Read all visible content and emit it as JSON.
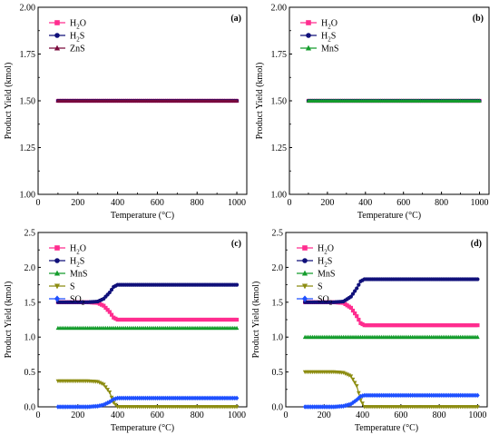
{
  "chart_data": [
    {
      "type": "line",
      "panel_label": "(a)",
      "xlabel": "Temperature (°C)",
      "ylabel": "Product Yield (kmol)",
      "xlim": [
        0,
        1050
      ],
      "ylim": [
        1.0,
        2.0
      ],
      "xticks": [
        0,
        200,
        400,
        600,
        800,
        1000
      ],
      "yticks": [
        1.0,
        1.25,
        1.5,
        1.75,
        2.0
      ],
      "ytick_labels": [
        "1.00",
        "1.25",
        "1.50",
        "1.75",
        "2.00"
      ],
      "legend_position": "top-left",
      "series": [
        {
          "name": "H",
          "sub": "2",
          "tail": "O",
          "color": "#ff2d8f",
          "marker": "square",
          "x": [
            100,
            1000
          ],
          "y": [
            1.5,
            1.5
          ]
        },
        {
          "name": "H",
          "sub": "2",
          "tail": "S",
          "color": "#10107a",
          "marker": "circle",
          "x": [
            100,
            1000
          ],
          "y": [
            1.5,
            1.5
          ]
        },
        {
          "name": "ZnS",
          "sub": "",
          "tail": "",
          "color": "#7a0a3c",
          "marker": "triangle-up",
          "x": [
            100,
            1000
          ],
          "y": [
            1.5,
            1.5
          ]
        }
      ]
    },
    {
      "type": "line",
      "panel_label": "(b)",
      "xlabel": "Temperature (°C)",
      "ylabel": "Product Yield (kmol)",
      "xlim": [
        0,
        1050
      ],
      "ylim": [
        1.0,
        2.0
      ],
      "xticks": [
        0,
        200,
        400,
        600,
        800,
        1000
      ],
      "yticks": [
        1.0,
        1.25,
        1.5,
        1.75,
        2.0
      ],
      "ytick_labels": [
        "1.00",
        "1.25",
        "1.50",
        "1.75",
        "2.00"
      ],
      "legend_position": "top-left",
      "series": [
        {
          "name": "H",
          "sub": "2",
          "tail": "O",
          "color": "#ff2d8f",
          "marker": "square",
          "x": [
            100,
            1000
          ],
          "y": [
            1.5,
            1.5
          ]
        },
        {
          "name": "H",
          "sub": "2",
          "tail": "S",
          "color": "#10107a",
          "marker": "circle",
          "x": [
            100,
            1000
          ],
          "y": [
            1.5,
            1.5
          ]
        },
        {
          "name": "MnS",
          "sub": "",
          "tail": "",
          "color": "#149c2c",
          "marker": "triangle-up",
          "x": [
            100,
            1000
          ],
          "y": [
            1.5,
            1.5
          ]
        }
      ]
    },
    {
      "type": "line",
      "panel_label": "(c)",
      "xlabel": "Temperature (°C)",
      "ylabel": "Product Yield (kmol)",
      "xlim": [
        0,
        1050
      ],
      "ylim": [
        0,
        2.5
      ],
      "xticks": [
        0,
        200,
        400,
        600,
        800,
        1000
      ],
      "yticks": [
        0,
        0.5,
        1.0,
        1.5,
        2.0,
        2.5
      ],
      "ytick_labels": [
        "0.0",
        "0.5",
        "1.0",
        "1.5",
        "2.0",
        "2.5"
      ],
      "legend_position": "top-left",
      "series": [
        {
          "name": "H",
          "sub": "2",
          "tail": "O",
          "color": "#ff2d8f",
          "marker": "square",
          "x": [
            100,
            250,
            300,
            330,
            360,
            380,
            400,
            1000
          ],
          "y": [
            1.5,
            1.5,
            1.49,
            1.45,
            1.36,
            1.28,
            1.25,
            1.25
          ]
        },
        {
          "name": "H",
          "sub": "2",
          "tail": "S",
          "color": "#10107a",
          "marker": "circle",
          "x": [
            100,
            250,
            300,
            330,
            360,
            380,
            400,
            1000
          ],
          "y": [
            1.5,
            1.5,
            1.51,
            1.55,
            1.64,
            1.72,
            1.75,
            1.75
          ]
        },
        {
          "name": "MnS",
          "sub": "",
          "tail": "",
          "color": "#149c2c",
          "marker": "triangle-up",
          "x": [
            100,
            1000
          ],
          "y": [
            1.13,
            1.13
          ]
        },
        {
          "name": "S",
          "sub": "",
          "tail": "",
          "color": "#8c8c10",
          "marker": "triangle-down",
          "x": [
            100,
            250,
            300,
            330,
            360,
            380,
            400,
            1000
          ],
          "y": [
            0.37,
            0.37,
            0.36,
            0.32,
            0.21,
            0.06,
            0.0,
            0.0
          ]
        },
        {
          "name": "SO",
          "sub": "2",
          "tail": "",
          "color": "#1e50ff",
          "marker": "diamond",
          "x": [
            100,
            250,
            300,
            330,
            360,
            380,
            400,
            1000
          ],
          "y": [
            0.0,
            0.0,
            0.01,
            0.03,
            0.07,
            0.11,
            0.125,
            0.125
          ]
        }
      ]
    },
    {
      "type": "line",
      "panel_label": "(d)",
      "xlabel": "Temperature (°C)",
      "ylabel": "Product Yield (kmol)",
      "xlim": [
        0,
        1050
      ],
      "ylim": [
        0,
        2.5
      ],
      "xticks": [
        0,
        200,
        400,
        600,
        800,
        1000
      ],
      "yticks": [
        0,
        0.5,
        1.0,
        1.5,
        2.0,
        2.5
      ],
      "ytick_labels": [
        "0.0",
        "0.5",
        "1.0",
        "1.5",
        "2.0",
        "2.5"
      ],
      "legend_position": "top-left",
      "series": [
        {
          "name": "H",
          "sub": "2",
          "tail": "O",
          "color": "#ff2d8f",
          "marker": "square",
          "x": [
            100,
            250,
            300,
            340,
            370,
            390,
            410,
            1000
          ],
          "y": [
            1.5,
            1.5,
            1.49,
            1.42,
            1.3,
            1.2,
            1.17,
            1.17
          ]
        },
        {
          "name": "H",
          "sub": "2",
          "tail": "S",
          "color": "#10107a",
          "marker": "circle",
          "x": [
            100,
            250,
            300,
            340,
            370,
            390,
            410,
            1000
          ],
          "y": [
            1.5,
            1.5,
            1.51,
            1.58,
            1.7,
            1.8,
            1.83,
            1.83
          ]
        },
        {
          "name": "MnS",
          "sub": "",
          "tail": "",
          "color": "#149c2c",
          "marker": "triangle-up",
          "x": [
            100,
            1000
          ],
          "y": [
            1.0,
            1.0
          ]
        },
        {
          "name": "S",
          "sub": "",
          "tail": "",
          "color": "#8c8c10",
          "marker": "triangle-down",
          "x": [
            100,
            250,
            300,
            340,
            370,
            390,
            410,
            1000
          ],
          "y": [
            0.5,
            0.5,
            0.49,
            0.44,
            0.3,
            0.1,
            0.0,
            0.0
          ]
        },
        {
          "name": "SO",
          "sub": "2",
          "tail": "",
          "color": "#1e50ff",
          "marker": "diamond",
          "x": [
            100,
            250,
            300,
            340,
            370,
            390,
            410,
            1000
          ],
          "y": [
            0.0,
            0.0,
            0.01,
            0.04,
            0.1,
            0.15,
            0.165,
            0.165
          ]
        }
      ]
    }
  ]
}
